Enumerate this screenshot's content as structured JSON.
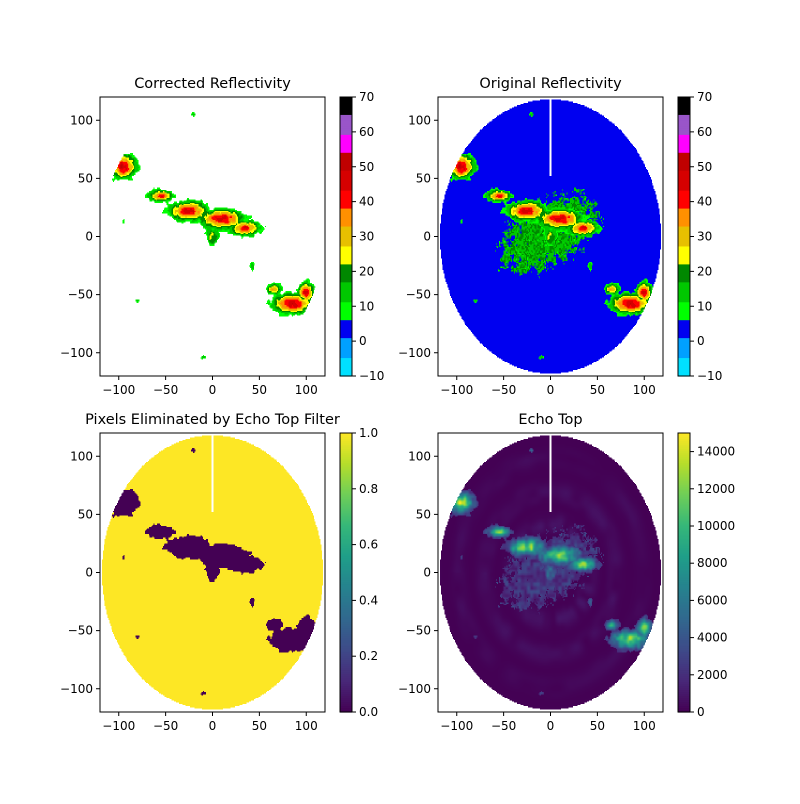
{
  "chart_data": [
    {
      "type": "heatmap",
      "title": "Corrected Reflectivity",
      "xlim": [
        -120,
        120
      ],
      "ylim": [
        -120,
        120
      ],
      "x_ticks": [
        -100,
        -50,
        0,
        50,
        100
      ],
      "y_ticks": [
        -100,
        -50,
        0,
        50,
        100
      ],
      "colorbar": {
        "colormap": "pyart_NWSRef",
        "range": [
          -10,
          70
        ],
        "ticks": [
          -10,
          0,
          10,
          20,
          30,
          40,
          50,
          60,
          70
        ]
      },
      "field": "corrected"
    },
    {
      "type": "heatmap",
      "title": "Original Reflectivity",
      "xlim": [
        -120,
        120
      ],
      "ylim": [
        -120,
        120
      ],
      "x_ticks": [
        -100,
        -50,
        0,
        50,
        100
      ],
      "y_ticks": [
        -100,
        -50,
        0,
        50,
        100
      ],
      "colorbar": {
        "colormap": "pyart_NWSRef",
        "range": [
          -10,
          70
        ],
        "ticks": [
          -10,
          0,
          10,
          20,
          30,
          40,
          50,
          60,
          70
        ]
      },
      "field": "original"
    },
    {
      "type": "heatmap",
      "title": "Pixels Eliminated by Echo Top Filter",
      "xlim": [
        -120,
        120
      ],
      "ylim": [
        -120,
        120
      ],
      "x_ticks": [
        -100,
        -50,
        0,
        50,
        100
      ],
      "y_ticks": [
        -100,
        -50,
        0,
        50,
        100
      ],
      "colorbar": {
        "colormap": "viridis",
        "range": [
          0,
          1
        ],
        "ticks": [
          0.0,
          0.2,
          0.4,
          0.6,
          0.8,
          1.0
        ],
        "tick_labels": [
          "0.0",
          "0.2",
          "0.4",
          "0.6",
          "0.8",
          "1.0"
        ]
      },
      "field": "mask"
    },
    {
      "type": "heatmap",
      "title": "Echo Top",
      "xlim": [
        -120,
        120
      ],
      "ylim": [
        -120,
        120
      ],
      "x_ticks": [
        -100,
        -50,
        0,
        50,
        100
      ],
      "y_ticks": [
        -100,
        -50,
        0,
        50,
        100
      ],
      "colorbar": {
        "colormap": "viridis",
        "range": [
          0,
          15000
        ],
        "ticks": [
          0,
          2000,
          4000,
          6000,
          8000,
          10000,
          12000,
          14000
        ]
      },
      "field": "echotop"
    }
  ],
  "colormaps": {
    "pyart_NWSRef": [
      "#00e0ff",
      "#00a0ff",
      "#0000f0",
      "#00ff00",
      "#00c800",
      "#008800",
      "#ffff00",
      "#e7c000",
      "#ff9000",
      "#ff0000",
      "#d60000",
      "#c00000",
      "#ff00ff",
      "#9955c9",
      "#000000"
    ],
    "viridis": [
      "#440154",
      "#482878",
      "#3e4a89",
      "#31688e",
      "#26828e",
      "#1f9e89",
      "#35b779",
      "#6ece58",
      "#b5de2b",
      "#fde725"
    ]
  },
  "radar": {
    "range_km": 118,
    "beam_gap_x": 0,
    "beam_gap_y_range": [
      52,
      118
    ],
    "storm_cells": [
      {
        "x": -95,
        "y": 60,
        "rx": 13,
        "ry": 10,
        "peak": 48
      },
      {
        "x": -55,
        "y": 35,
        "rx": 12,
        "ry": 5,
        "peak": 40
      },
      {
        "x": -25,
        "y": 22,
        "rx": 20,
        "ry": 8,
        "peak": 45
      },
      {
        "x": 10,
        "y": 15,
        "rx": 22,
        "ry": 8,
        "peak": 47
      },
      {
        "x": 35,
        "y": 7,
        "rx": 15,
        "ry": 6,
        "peak": 42
      },
      {
        "x": 0,
        "y": 0,
        "rx": 7,
        "ry": 8,
        "peak": 25
      },
      {
        "x": 85,
        "y": -58,
        "rx": 20,
        "ry": 8,
        "peak": 48
      },
      {
        "x": 100,
        "y": -48,
        "rx": 8,
        "ry": 8,
        "peak": 45
      },
      {
        "x": 65,
        "y": -45,
        "rx": 8,
        "ry": 5,
        "peak": 30
      },
      {
        "x": -80,
        "y": -55,
        "rx": 2,
        "ry": 2,
        "peak": 15
      },
      {
        "x": -10,
        "y": -104,
        "rx": 4,
        "ry": 2,
        "peak": 15
      },
      {
        "x": -75,
        "y": 97,
        "rx": 2,
        "ry": 3,
        "peak": 14
      },
      {
        "x": -20,
        "y": 105,
        "rx": 3,
        "ry": 2,
        "peak": 15
      },
      {
        "x": -95,
        "y": 12,
        "rx": 3,
        "ry": 4,
        "peak": 12
      },
      {
        "x": 42,
        "y": -25,
        "rx": 4,
        "ry": 4,
        "peak": 16
      }
    ]
  }
}
